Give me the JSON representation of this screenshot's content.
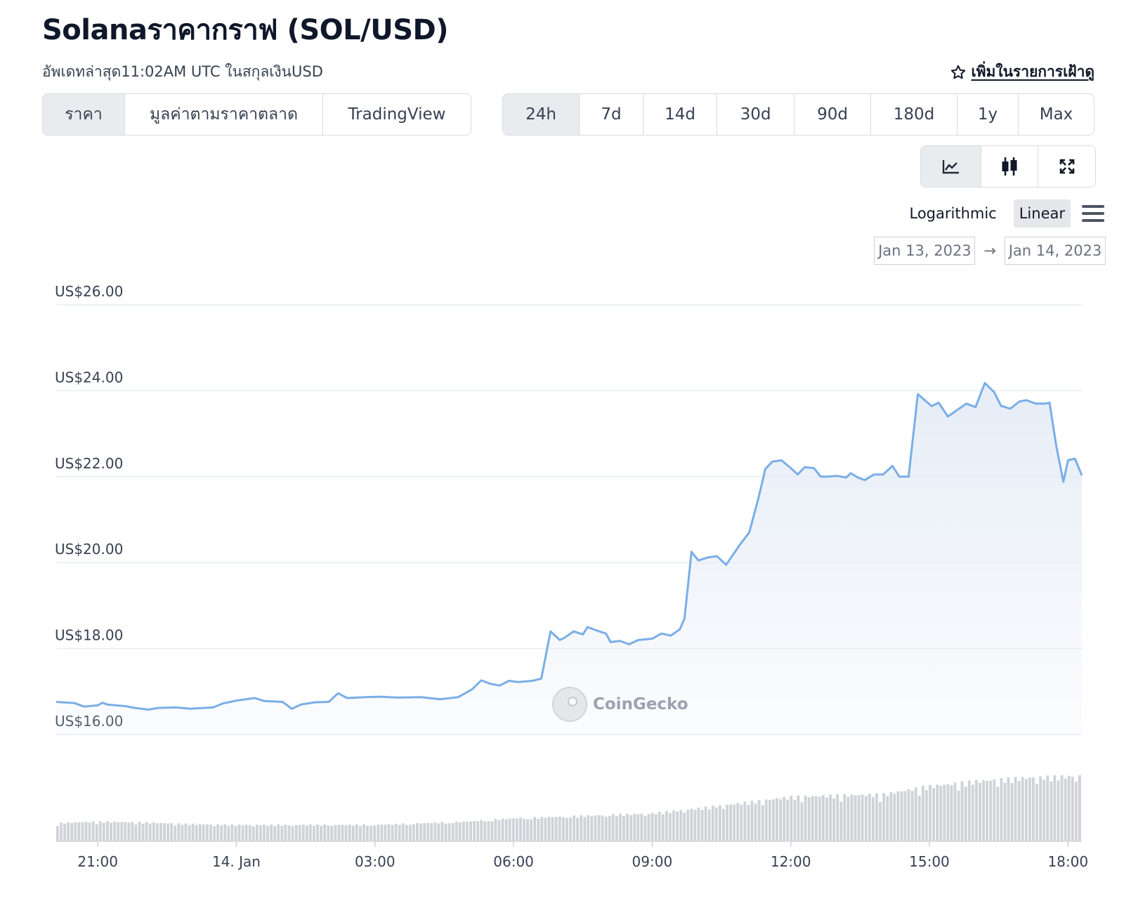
{
  "header": {
    "title": "Solanaราคากราฟ (SOL/USD)",
    "subtitle": "อัพเดทล่าสุด11:02AM UTC ในสกุลเงินUSD",
    "watchlist_label": "เพิ่มในรายการเฝ้าดู"
  },
  "view_tabs": [
    {
      "label": "ราคา",
      "active": true
    },
    {
      "label": "มูลค่าตามราคาตลาด",
      "active": false
    },
    {
      "label": "TradingView",
      "active": false
    }
  ],
  "period_tabs": [
    {
      "label": "24h",
      "active": true
    },
    {
      "label": "7d",
      "active": false
    },
    {
      "label": "14d",
      "active": false
    },
    {
      "label": "30d",
      "active": false
    },
    {
      "label": "90d",
      "active": false
    },
    {
      "label": "180d",
      "active": false
    },
    {
      "label": "1y",
      "active": false
    },
    {
      "label": "Max",
      "active": false
    }
  ],
  "chart_tools": [
    {
      "icon": "line-chart-icon",
      "active": true
    },
    {
      "icon": "candlestick-icon",
      "active": false
    },
    {
      "icon": "fullscreen-icon",
      "active": false
    }
  ],
  "scale": {
    "logarithmic": "Logarithmic",
    "linear": "Linear",
    "active": "Linear"
  },
  "date_range": {
    "from": "Jan 13, 2023",
    "to": "Jan 14, 2023",
    "arrow": "→"
  },
  "watermark": "CoinGecko",
  "colors": {
    "line": "#7aaee6",
    "fill_top": "#e5ecf6",
    "volume": "#cfd3d8",
    "grid": "#e9edf2"
  },
  "chart_data": {
    "type": "area",
    "ylim": [
      16,
      26
    ],
    "yticks": [
      26,
      24,
      22,
      20,
      18,
      16
    ],
    "ytick_labels": [
      "US$26.00",
      "US$24.00",
      "US$22.00",
      "US$20.00",
      "US$18.00",
      "US$16.00"
    ],
    "xlim": [
      -3.9,
      18.3
    ],
    "xticks": [
      {
        "label": "21:00",
        "value": -3
      },
      {
        "label": "14. Jan",
        "value": 0
      },
      {
        "label": "03:00",
        "value": 3
      },
      {
        "label": "06:00",
        "value": 6
      },
      {
        "label": "09:00",
        "value": 9
      },
      {
        "label": "12:00",
        "value": 12
      },
      {
        "label": "15:00",
        "value": 15
      },
      {
        "label": "18:00",
        "value": 18
      }
    ],
    "x_unit": "hours relative to 14. Jan 00:00",
    "price_points": [
      [
        -3.9,
        16.76
      ],
      [
        -3.5,
        16.73
      ],
      [
        -3.3,
        16.65
      ],
      [
        -3.0,
        16.68
      ],
      [
        -2.9,
        16.74
      ],
      [
        -2.8,
        16.7
      ],
      [
        -2.4,
        16.66
      ],
      [
        -2.2,
        16.62
      ],
      [
        -1.9,
        16.58
      ],
      [
        -1.7,
        16.62
      ],
      [
        -1.3,
        16.63
      ],
      [
        -1.0,
        16.6
      ],
      [
        -0.5,
        16.63
      ],
      [
        -0.3,
        16.72
      ],
      [
        0.0,
        16.79
      ],
      [
        0.4,
        16.85
      ],
      [
        0.6,
        16.78
      ],
      [
        1.0,
        16.76
      ],
      [
        1.2,
        16.6
      ],
      [
        1.4,
        16.7
      ],
      [
        1.7,
        16.75
      ],
      [
        2.0,
        16.76
      ],
      [
        2.2,
        16.96
      ],
      [
        2.4,
        16.85
      ],
      [
        2.8,
        16.87
      ],
      [
        3.1,
        16.88
      ],
      [
        3.5,
        16.86
      ],
      [
        4.0,
        16.87
      ],
      [
        4.4,
        16.82
      ],
      [
        4.8,
        16.87
      ],
      [
        5.1,
        17.05
      ],
      [
        5.3,
        17.26
      ],
      [
        5.5,
        17.18
      ],
      [
        5.7,
        17.14
      ],
      [
        5.9,
        17.25
      ],
      [
        6.1,
        17.22
      ],
      [
        6.4,
        17.25
      ],
      [
        6.6,
        17.3
      ],
      [
        6.8,
        18.4
      ],
      [
        7.0,
        18.2
      ],
      [
        7.1,
        18.25
      ],
      [
        7.3,
        18.4
      ],
      [
        7.5,
        18.33
      ],
      [
        7.6,
        18.5
      ],
      [
        7.8,
        18.42
      ],
      [
        8.0,
        18.35
      ],
      [
        8.1,
        18.15
      ],
      [
        8.3,
        18.18
      ],
      [
        8.5,
        18.1
      ],
      [
        8.7,
        18.2
      ],
      [
        9.0,
        18.23
      ],
      [
        9.2,
        18.35
      ],
      [
        9.4,
        18.3
      ],
      [
        9.6,
        18.45
      ],
      [
        9.7,
        18.7
      ],
      [
        9.85,
        20.25
      ],
      [
        10.0,
        20.05
      ],
      [
        10.2,
        20.12
      ],
      [
        10.4,
        20.15
      ],
      [
        10.6,
        19.95
      ],
      [
        10.9,
        20.42
      ],
      [
        11.1,
        20.7
      ],
      [
        11.3,
        21.5
      ],
      [
        11.45,
        22.18
      ],
      [
        11.6,
        22.35
      ],
      [
        11.8,
        22.38
      ],
      [
        12.0,
        22.2
      ],
      [
        12.15,
        22.05
      ],
      [
        12.3,
        22.22
      ],
      [
        12.5,
        22.2
      ],
      [
        12.65,
        22.0
      ],
      [
        12.8,
        22.0
      ],
      [
        13.0,
        22.02
      ],
      [
        13.2,
        21.98
      ],
      [
        13.3,
        22.08
      ],
      [
        13.45,
        21.98
      ],
      [
        13.6,
        21.92
      ],
      [
        13.8,
        22.05
      ],
      [
        14.0,
        22.05
      ],
      [
        14.2,
        22.25
      ],
      [
        14.35,
        22.0
      ],
      [
        14.55,
        22.0
      ],
      [
        14.75,
        23.92
      ],
      [
        14.9,
        23.78
      ],
      [
        15.05,
        23.64
      ],
      [
        15.2,
        23.72
      ],
      [
        15.4,
        23.4
      ],
      [
        15.6,
        23.55
      ],
      [
        15.8,
        23.7
      ],
      [
        16.0,
        23.62
      ],
      [
        16.2,
        24.18
      ],
      [
        16.4,
        23.97
      ],
      [
        16.55,
        23.65
      ],
      [
        16.75,
        23.58
      ],
      [
        16.95,
        23.75
      ],
      [
        17.1,
        23.78
      ],
      [
        17.3,
        23.7
      ],
      [
        17.5,
        23.7
      ],
      [
        17.6,
        23.72
      ],
      [
        17.75,
        22.7
      ],
      [
        17.9,
        21.88
      ],
      [
        18.0,
        22.38
      ],
      [
        18.15,
        22.42
      ],
      [
        18.3,
        22.03
      ]
    ],
    "volume_relative": [
      [
        -3.9,
        0.22
      ],
      [
        -3.0,
        0.24
      ],
      [
        -2.0,
        0.23
      ],
      [
        -1.0,
        0.21
      ],
      [
        0.0,
        0.2
      ],
      [
        1.0,
        0.2
      ],
      [
        2.0,
        0.2
      ],
      [
        3.0,
        0.2
      ],
      [
        4.0,
        0.22
      ],
      [
        5.0,
        0.24
      ],
      [
        6.0,
        0.28
      ],
      [
        7.0,
        0.3
      ],
      [
        8.0,
        0.32
      ],
      [
        9.0,
        0.34
      ],
      [
        10.0,
        0.4
      ],
      [
        11.0,
        0.47
      ],
      [
        12.0,
        0.54
      ],
      [
        13.0,
        0.56
      ],
      [
        14.0,
        0.57
      ],
      [
        15.0,
        0.67
      ],
      [
        16.0,
        0.73
      ],
      [
        17.0,
        0.77
      ],
      [
        18.0,
        0.79
      ],
      [
        18.3,
        0.8
      ]
    ]
  }
}
